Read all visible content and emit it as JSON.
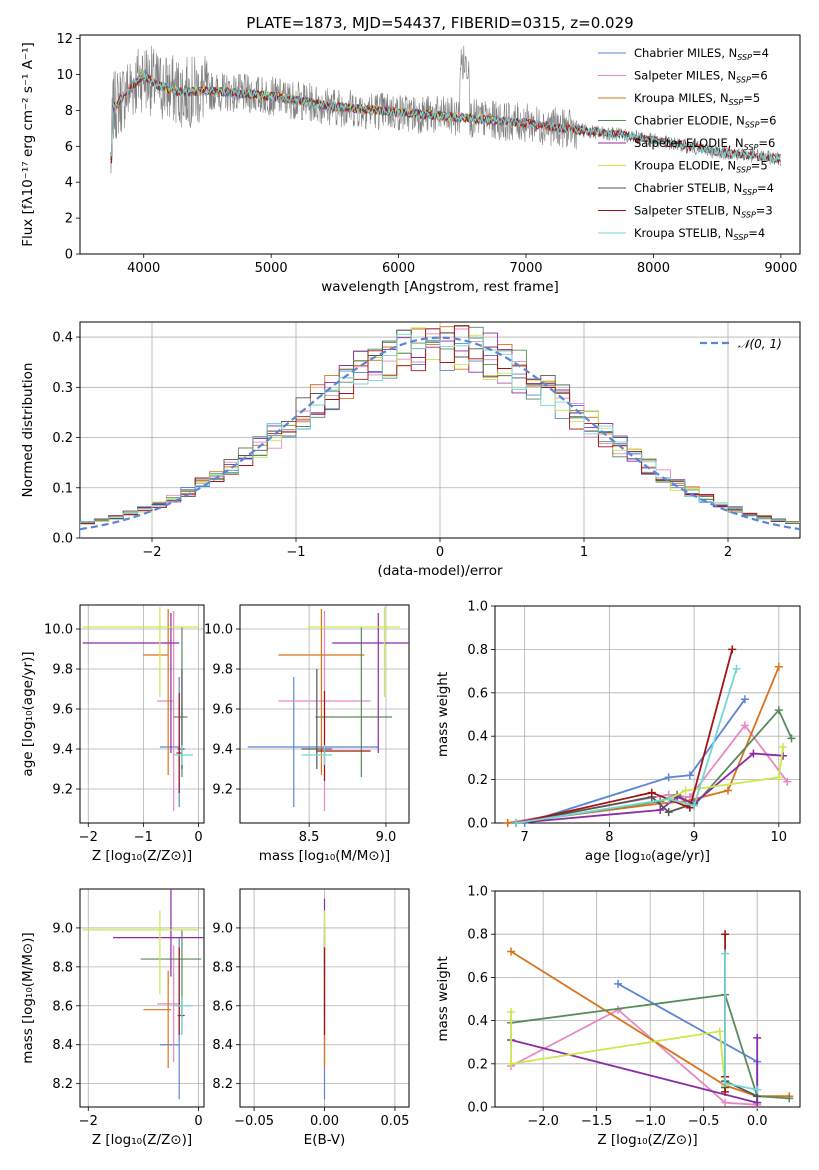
{
  "figure": {
    "title": "PLATE=1873, MJD=54437, FIBERID=0315, z=0.029"
  },
  "colors": {
    "Chabrier MILES": "#5b85d6",
    "Salpeter MILES": "#e68ac3",
    "Kroupa MILES": "#d9741b",
    "Chabrier ELODIE": "#5a8b5a",
    "Salpeter ELODIE": "#8b2ba6",
    "Kroupa ELODIE": "#cce84d",
    "Chabrier STELIB": "#555555",
    "Salpeter STELIB": "#a31515",
    "Kroupa STELIB": "#73d6d6",
    "data": "#808080",
    "normal": "#5b85d6"
  },
  "chart_data": [
    {
      "id": "spectrum",
      "type": "line",
      "xlabel": "wavelength [Angstrom, rest frame]",
      "ylabel": "Flux [fλ10⁻¹⁷ erg cm⁻² s⁻¹ A⁻¹]",
      "xlim": [
        3500,
        9150
      ],
      "ylim": [
        0,
        12.2
      ],
      "xticks": [
        4000,
        5000,
        6000,
        7000,
        8000,
        9000
      ],
      "yticks": [
        0,
        2,
        4,
        6,
        8,
        10,
        12
      ],
      "legend_position": "top-right",
      "legend": [
        {
          "label": "Chabrier MILES, N",
          "sub": "SSP",
          "tail": "=4"
        },
        {
          "label": "Salpeter MILES, N",
          "sub": "SSP",
          "tail": "=6"
        },
        {
          "label": "Kroupa MILES, N",
          "sub": "SSP",
          "tail": "=5"
        },
        {
          "label": "Chabrier ELODIE, N",
          "sub": "SSP",
          "tail": "=6"
        },
        {
          "label": "Salpeter ELODIE, N",
          "sub": "SSP",
          "tail": "=6"
        },
        {
          "label": "Kroupa ELODIE, N",
          "sub": "SSP",
          "tail": "=5"
        },
        {
          "label": "Chabrier STELIB, N",
          "sub": "SSP",
          "tail": "=4"
        },
        {
          "label": "Salpeter STELIB, N",
          "sub": "SSP",
          "tail": "=3"
        },
        {
          "label": "Kroupa STELIB, N",
          "sub": "SSP",
          "tail": "=4"
        }
      ],
      "continuum": [
        [
          3750,
          8.0
        ],
        [
          3900,
          9.3
        ],
        [
          4000,
          10.0
        ],
        [
          4100,
          9.4
        ],
        [
          4300,
          9.0
        ],
        [
          4500,
          9.1
        ],
        [
          5000,
          8.8
        ],
        [
          5500,
          8.2
        ],
        [
          6000,
          7.9
        ],
        [
          6500,
          7.6
        ],
        [
          7000,
          7.3
        ],
        [
          7400,
          6.9
        ],
        [
          7800,
          6.6
        ],
        [
          8500,
          5.7
        ],
        [
          9000,
          5.3
        ]
      ],
      "series_ranges": [
        {
          "name": "Chabrier MILES",
          "x": [
            3740,
            7420
          ]
        },
        {
          "name": "Salpeter MILES",
          "x": [
            3740,
            7420
          ]
        },
        {
          "name": "Kroupa MILES",
          "x": [
            3740,
            7420
          ]
        },
        {
          "name": "Chabrier ELODIE",
          "x": [
            3900,
            6800
          ]
        },
        {
          "name": "Salpeter ELODIE",
          "x": [
            3900,
            6800
          ]
        },
        {
          "name": "Kroupa ELODIE",
          "x": [
            3900,
            6800
          ]
        },
        {
          "name": "Chabrier STELIB",
          "x": [
            3740,
            9000
          ]
        },
        {
          "name": "Salpeter STELIB",
          "x": [
            3740,
            9000
          ]
        },
        {
          "name": "Kroupa STELIB",
          "x": [
            3740,
            9000
          ]
        }
      ]
    },
    {
      "id": "residuals",
      "type": "histogram",
      "xlabel": "(data-model)/error",
      "ylabel": "Normed distribution",
      "xlim": [
        -2.5,
        2.5
      ],
      "ylim": [
        0,
        0.43
      ],
      "xticks": [
        -2,
        -1,
        0,
        1,
        2
      ],
      "yticks": [
        0.0,
        0.1,
        0.2,
        0.3,
        0.4
      ],
      "grid": true,
      "legend_position": "top-right",
      "legend": [
        {
          "label": "𝒩(0, 1)"
        }
      ],
      "bin_width": 0.1
    },
    {
      "id": "age-vs-Z",
      "type": "errorbar",
      "xlabel": "Z [log₁₀(Z/Z⊙)]",
      "ylabel": "age  [log₁₀(age/yr)]",
      "xlim": [
        -2.15,
        0.1
      ],
      "ylim": [
        9.03,
        10.12
      ],
      "xticks": [
        -2,
        -1,
        0
      ],
      "yticks": [
        9.2,
        9.4,
        9.6,
        9.8,
        10.0
      ],
      "grid": true,
      "points": [
        {
          "name": "Chabrier MILES",
          "x": -0.35,
          "y": 9.41,
          "xerr": [
            0.35,
            0.0
          ],
          "yerr": [
            0.3,
            0.35
          ]
        },
        {
          "name": "Salpeter MILES",
          "x": -0.45,
          "y": 9.64,
          "xerr": [
            0.3,
            0.0
          ],
          "yerr": [
            0.55,
            0.45
          ]
        },
        {
          "name": "Kroupa MILES",
          "x": -0.55,
          "y": 9.87,
          "xerr": [
            0.45,
            0.0
          ],
          "yerr": [
            0.6,
            0.23
          ]
        },
        {
          "name": "Chabrier ELODIE",
          "x": -0.3,
          "y": 9.56,
          "xerr": [
            0.15,
            0.1
          ],
          "yerr": [
            0.3,
            0.45
          ]
        },
        {
          "name": "Salpeter ELODIE",
          "x": -0.5,
          "y": 9.93,
          "xerr": [
            1.6,
            0.15
          ],
          "yerr": [
            0.55,
            0.15
          ]
        },
        {
          "name": "Kroupa ELODIE",
          "x": -0.7,
          "y": 10.01,
          "xerr": [
            1.4,
            0.7
          ],
          "yerr": [
            0.35,
            0.1
          ]
        },
        {
          "name": "Chabrier STELIB",
          "x": -0.3,
          "y": 9.4,
          "xerr": [
            0.08,
            0.05
          ],
          "yerr": [
            0.1,
            0.4
          ]
        },
        {
          "name": "Salpeter STELIB",
          "x": -0.35,
          "y": 9.38,
          "xerr": [
            0.05,
            0.05
          ],
          "yerr": [
            0.2,
            0.3
          ]
        },
        {
          "name": "Kroupa STELIB",
          "x": -0.3,
          "y": 9.37,
          "xerr": [
            0.15,
            0.2
          ],
          "yerr": [
            0.05,
            0.05
          ]
        }
      ]
    },
    {
      "id": "age-vs-mass",
      "type": "errorbar",
      "xlabel": "mass [log₁₀(M/M⊙)]",
      "ylabel": "",
      "xlim": [
        8.05,
        9.15
      ],
      "ylim": [
        9.03,
        10.12
      ],
      "xticks": [
        8.5,
        9.0
      ],
      "yticks": [
        9.2,
        9.4,
        9.6,
        9.8,
        10.0
      ],
      "grid": true,
      "points": [
        {
          "name": "Chabrier MILES",
          "x": 8.4,
          "y": 9.41,
          "xerr": [
            0.3,
            0.55
          ],
          "yerr": [
            0.3,
            0.35
          ]
        },
        {
          "name": "Salpeter MILES",
          "x": 8.6,
          "y": 9.64,
          "xerr": [
            0.3,
            0.3
          ],
          "yerr": [
            0.55,
            0.45
          ]
        },
        {
          "name": "Kroupa MILES",
          "x": 8.58,
          "y": 9.87,
          "xerr": [
            0.28,
            0.28
          ],
          "yerr": [
            0.6,
            0.23
          ]
        },
        {
          "name": "Chabrier ELODIE",
          "x": 8.84,
          "y": 9.56,
          "xerr": [
            0.3,
            0.2
          ],
          "yerr": [
            0.3,
            0.45
          ]
        },
        {
          "name": "Salpeter ELODIE",
          "x": 8.95,
          "y": 9.93,
          "xerr": [
            0.3,
            0.25
          ],
          "yerr": [
            0.55,
            0.15
          ]
        },
        {
          "name": "Kroupa ELODIE",
          "x": 8.99,
          "y": 10.01,
          "xerr": [
            0.5,
            0.1
          ],
          "yerr": [
            0.35,
            0.1
          ]
        },
        {
          "name": "Chabrier STELIB",
          "x": 8.55,
          "y": 9.4,
          "xerr": [
            0.1,
            0.1
          ],
          "yerr": [
            0.1,
            0.4
          ]
        },
        {
          "name": "Salpeter STELIB",
          "x": 8.6,
          "y": 9.39,
          "xerr": [
            0.05,
            0.3
          ],
          "yerr": [
            0.15,
            0.3
          ]
        },
        {
          "name": "Kroupa STELIB",
          "x": 8.6,
          "y": 9.37,
          "xerr": [
            0.15,
            0.05
          ],
          "yerr": [
            0.05,
            0.05
          ]
        }
      ]
    },
    {
      "id": "weight-vs-age",
      "type": "line",
      "xlabel": "age  [log₁₀(age/yr)]",
      "ylabel": "mass weight",
      "xlim": [
        6.65,
        10.25
      ],
      "ylim": [
        0,
        1.0
      ],
      "xticks": [
        7,
        8,
        9,
        10
      ],
      "yticks": [
        0.0,
        0.2,
        0.4,
        0.6,
        0.8,
        1.0
      ],
      "grid": true,
      "series": [
        {
          "name": "Chabrier MILES",
          "x": [
            7.0,
            8.7,
            8.95,
            9.6
          ],
          "y": [
            0.0,
            0.21,
            0.22,
            0.57
          ]
        },
        {
          "name": "Salpeter MILES",
          "x": [
            6.8,
            8.7,
            8.95,
            9.6,
            10.1
          ],
          "y": [
            0.0,
            0.13,
            0.12,
            0.45,
            0.19
          ]
        },
        {
          "name": "Kroupa MILES",
          "x": [
            6.8,
            8.6,
            8.9,
            9.4,
            10.0
          ],
          "y": [
            0.0,
            0.09,
            0.1,
            0.15,
            0.72
          ]
        },
        {
          "name": "Chabrier ELODIE",
          "x": [
            6.9,
            8.6,
            8.8,
            9.0,
            10.0,
            10.15
          ],
          "y": [
            0.0,
            0.1,
            0.13,
            0.08,
            0.52,
            0.39
          ]
        },
        {
          "name": "Salpeter ELODIE",
          "x": [
            6.9,
            8.6,
            8.8,
            9.0,
            9.7,
            10.05
          ],
          "y": [
            0.0,
            0.06,
            0.12,
            0.09,
            0.32,
            0.31
          ]
        },
        {
          "name": "Kroupa ELODIE",
          "x": [
            6.9,
            8.7,
            8.9,
            10.0,
            10.05
          ],
          "y": [
            0.0,
            0.11,
            0.15,
            0.21,
            0.35
          ]
        },
        {
          "name": "Chabrier STELIB",
          "x": [
            6.9,
            8.5,
            8.7,
            9.0
          ],
          "y": [
            0.0,
            0.12,
            0.05,
            0.09
          ]
        },
        {
          "name": "Salpeter STELIB",
          "x": [
            6.9,
            8.5,
            8.95,
            9.45
          ],
          "y": [
            0.0,
            0.14,
            0.07,
            0.8
          ]
        },
        {
          "name": "Kroupa STELIB",
          "x": [
            6.9,
            8.7,
            9.0,
            9.5
          ],
          "y": [
            0.0,
            0.11,
            0.08,
            0.71
          ]
        }
      ]
    },
    {
      "id": "mass-vs-Z",
      "type": "errorbar",
      "xlabel": "Z [log₁₀(Z/Z⊙)]",
      "ylabel": "mass [log₁₀(M/M⊙)]",
      "xlim": [
        -2.15,
        0.1
      ],
      "ylim": [
        8.08,
        9.2
      ],
      "xticks": [
        -2,
        0
      ],
      "yticks": [
        8.2,
        8.4,
        8.6,
        8.8,
        9.0
      ],
      "grid": true,
      "points": [
        {
          "name": "Chabrier MILES",
          "x": -0.35,
          "y": 8.4,
          "xerr": [
            0.35,
            0.0
          ],
          "yerr": [
            0.28,
            0.55
          ]
        },
        {
          "name": "Salpeter MILES",
          "x": -0.45,
          "y": 8.61,
          "xerr": [
            0.3,
            0.1
          ],
          "yerr": [
            0.3,
            0.3
          ]
        },
        {
          "name": "Kroupa MILES",
          "x": -0.55,
          "y": 8.58,
          "xerr": [
            0.45,
            0.05
          ],
          "yerr": [
            0.3,
            0.2
          ]
        },
        {
          "name": "Chabrier ELODIE",
          "x": -0.3,
          "y": 8.84,
          "xerr": [
            0.75,
            0.35
          ],
          "yerr": [
            0.3,
            0.15
          ]
        },
        {
          "name": "Salpeter ELODIE",
          "x": -0.5,
          "y": 8.95,
          "xerr": [
            1.05,
            0.6
          ],
          "yerr": [
            0.2,
            0.3
          ]
        },
        {
          "name": "Kroupa ELODIE",
          "x": -0.7,
          "y": 8.99,
          "xerr": [
            1.4,
            0.7
          ],
          "yerr": [
            0.33,
            0.1
          ]
        },
        {
          "name": "Chabrier STELIB",
          "x": -0.3,
          "y": 8.55,
          "xerr": [
            0.08,
            0.05
          ],
          "yerr": [
            0.1,
            0.1
          ]
        },
        {
          "name": "Salpeter STELIB",
          "x": -0.35,
          "y": 8.6,
          "xerr": [
            0.05,
            0.05
          ],
          "yerr": [
            0.15,
            0.3
          ]
        },
        {
          "name": "Kroupa STELIB",
          "x": -0.3,
          "y": 8.6,
          "xerr": [
            0.15,
            0.2
          ],
          "yerr": [
            0.15,
            0.05
          ]
        }
      ]
    },
    {
      "id": "mass-vs-ebv",
      "type": "errorbar",
      "xlabel": "E(B-V)",
      "ylabel": "",
      "xlim": [
        -0.06,
        0.06
      ],
      "ylim": [
        8.08,
        9.2
      ],
      "xticks": [
        -0.05,
        0.0,
        0.05
      ],
      "yticks": [
        8.2,
        8.4,
        8.6,
        8.8,
        9.0
      ],
      "xticklabels": [
        "−0.05",
        "0.00",
        "0.05"
      ],
      "grid": true,
      "points": [
        {
          "name": "Chabrier MILES",
          "x": 0.0,
          "y": 8.4,
          "xerr": [
            0,
            0
          ],
          "yerr": [
            0.28,
            0.55
          ]
        },
        {
          "name": "Salpeter MILES",
          "x": 0.0,
          "y": 8.61,
          "xerr": [
            0,
            0
          ],
          "yerr": [
            0.3,
            0.3
          ]
        },
        {
          "name": "Kroupa MILES",
          "x": 0.0,
          "y": 8.58,
          "xerr": [
            0,
            0
          ],
          "yerr": [
            0.3,
            0.2
          ]
        },
        {
          "name": "Chabrier ELODIE",
          "x": 0.0,
          "y": 8.84,
          "xerr": [
            0,
            0
          ],
          "yerr": [
            0.3,
            0.15
          ]
        },
        {
          "name": "Salpeter ELODIE",
          "x": 0.0,
          "y": 8.95,
          "xerr": [
            0,
            0
          ],
          "yerr": [
            0.2,
            0.2
          ]
        },
        {
          "name": "Kroupa ELODIE",
          "x": 0.0,
          "y": 8.99,
          "xerr": [
            0,
            0
          ],
          "yerr": [
            0.33,
            0.1
          ]
        },
        {
          "name": "Salpeter STELIB",
          "x": 0.0,
          "y": 8.6,
          "xerr": [
            0,
            0
          ],
          "yerr": [
            0.15,
            0.3
          ]
        }
      ]
    },
    {
      "id": "weight-vs-Z",
      "type": "line",
      "xlabel": "Z [log₁₀(Z/Z⊙)]",
      "ylabel": "mass weight",
      "xlim": [
        -2.45,
        0.4
      ],
      "ylim": [
        0,
        1.0
      ],
      "xticks": [
        -2.0,
        -1.5,
        -1.0,
        -0.5,
        0.0
      ],
      "xticklabels": [
        "−2.0",
        "−1.5",
        "−1.0",
        "−0.5",
        "0.0"
      ],
      "yticks": [
        0.0,
        0.2,
        0.4,
        0.6,
        0.8,
        1.0
      ],
      "grid": true,
      "series": [
        {
          "name": "Chabrier MILES",
          "x": [
            -1.3,
            0.0,
            0.0
          ],
          "y": [
            0.57,
            0.21,
            0.02
          ]
        },
        {
          "name": "Salpeter MILES",
          "x": [
            -2.3,
            -1.3,
            -0.3,
            0.0
          ],
          "y": [
            0.19,
            0.45,
            0.02,
            0.01
          ]
        },
        {
          "name": "Kroupa MILES",
          "x": [
            -2.3,
            -0.3,
            0.0,
            0.3
          ],
          "y": [
            0.72,
            0.1,
            0.05,
            0.05
          ]
        },
        {
          "name": "Chabrier ELODIE",
          "x": [
            -2.3,
            -0.3,
            0.0,
            0.3
          ],
          "y": [
            0.39,
            0.52,
            0.05,
            0.04
          ]
        },
        {
          "name": "Salpeter ELODIE",
          "x": [
            -2.3,
            0.0,
            0.0
          ],
          "y": [
            0.31,
            0.02,
            0.32
          ]
        },
        {
          "name": "Kroupa ELODIE",
          "x": [
            -2.3,
            -2.3,
            -0.35,
            -0.3
          ],
          "y": [
            0.44,
            0.2,
            0.35,
            0.1
          ]
        },
        {
          "name": "Chabrier STELIB",
          "x": [
            -0.3,
            -0.3,
            0.0
          ],
          "y": [
            0.09,
            0.12,
            0.05
          ]
        },
        {
          "name": "Salpeter STELIB",
          "x": [
            -0.3,
            -0.3,
            -0.3
          ],
          "y": [
            0.8,
            0.14,
            0.07
          ]
        },
        {
          "name": "Kroupa STELIB",
          "x": [
            -0.3,
            -0.3,
            0.0
          ],
          "y": [
            0.71,
            0.11,
            0.08
          ]
        }
      ]
    }
  ]
}
